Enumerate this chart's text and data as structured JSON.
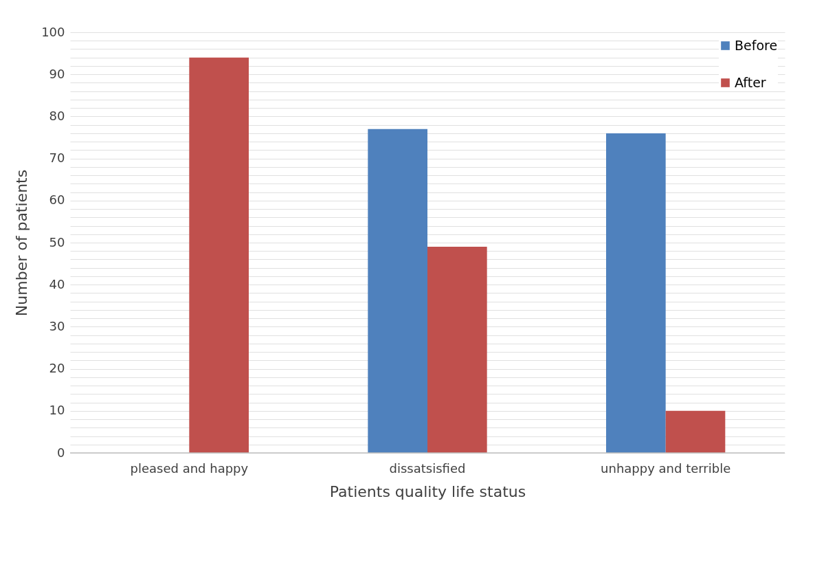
{
  "chart_data": {
    "type": "bar",
    "xlabel": "Patients  quality life status",
    "ylabel": "Number of patients",
    "categories": [
      "pleased and happy",
      "dissatsisfied",
      "unhappy and terrible"
    ],
    "series": [
      {
        "name": "Before",
        "color": "#4f81bd",
        "values": [
          0,
          77,
          76
        ]
      },
      {
        "name": "After",
        "color": "#c0504d",
        "values": [
          94,
          49,
          10
        ]
      }
    ],
    "ylim": [
      0,
      100
    ],
    "yticks": [
      0,
      {
        "value": 2,
        "label": null
      },
      {
        "value": 4,
        "label": null
      },
      {
        "value": 6,
        "label": null
      },
      {
        "value": 8,
        "label": null
      },
      10,
      {
        "value": 12,
        "label": null
      },
      {
        "value": 14,
        "label": null
      },
      {
        "value": 16,
        "label": null
      },
      {
        "value": 18,
        "label": null
      },
      20,
      {
        "value": 22,
        "label": null
      },
      {
        "value": 24,
        "label": null
      },
      {
        "value": 26,
        "label": null
      },
      {
        "value": 28,
        "label": null
      },
      30,
      {
        "value": 32,
        "label": null
      },
      {
        "value": 34,
        "label": null
      },
      {
        "value": 36,
        "label": null
      },
      {
        "value": 38,
        "label": null
      },
      40,
      {
        "value": 42,
        "label": null
      },
      {
        "value": 44,
        "label": null
      },
      {
        "value": 46,
        "label": null
      },
      {
        "value": 48,
        "label": null
      },
      50,
      {
        "value": 52,
        "label": null
      },
      {
        "value": 54,
        "label": null
      },
      {
        "value": 56,
        "label": null
      },
      {
        "value": 58,
        "label": null
      },
      60,
      {
        "value": 62,
        "label": null
      },
      {
        "value": 64,
        "label": null
      },
      {
        "value": 66,
        "label": null
      },
      {
        "value": 68,
        "label": null
      },
      70,
      {
        "value": 72,
        "label": null
      },
      {
        "value": 74,
        "label": null
      },
      {
        "value": 76,
        "label": null
      },
      {
        "value": 78,
        "label": null
      },
      80,
      {
        "value": 82,
        "label": null
      },
      {
        "value": 84,
        "label": null
      },
      {
        "value": 86,
        "label": null
      },
      {
        "value": 88,
        "label": null
      },
      90,
      {
        "value": 92,
        "label": null
      },
      {
        "value": 94,
        "label": null
      },
      {
        "value": 96,
        "label": null
      },
      {
        "value": 98,
        "label": null
      },
      100
    ],
    "grid": true,
    "legend": "top right"
  }
}
